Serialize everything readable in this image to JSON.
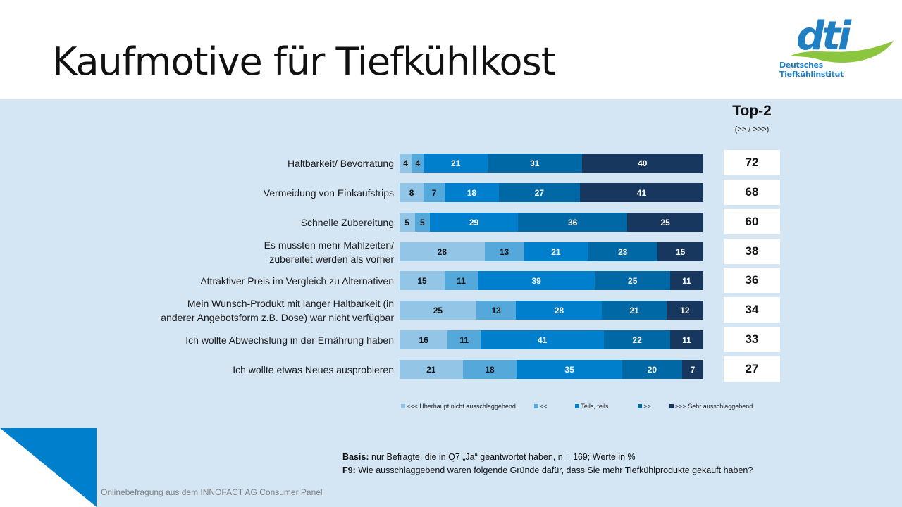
{
  "slide": {
    "title": "Kaufmotive für Tiefkühlkost",
    "logo": {
      "mark": "dti",
      "line1": "Deutsches",
      "line2": "Tiefkühlinstitut"
    },
    "source": "Onlinebefragung aus dem INNOFACT AG Consumer Panel",
    "basis_label": "Basis:",
    "basis_text": " nur Befragte, die in Q7 „Ja“ geantwortet haben, n = 169; Werte in %",
    "question_label": "F9:",
    "question_text": " Wie ausschlaggebend waren folgende Gründe dafür, dass Sie mehr Tiefkühlprodukte gekauft haben?",
    "top2_title": "Top-2",
    "top2_subtitle": "(>> / >>>)",
    "colors": {
      "panel": "#d4e5f4",
      "accent": "#0080cc",
      "logo_blue": "#1f7fc2",
      "logo_green": "#8cc63f"
    }
  },
  "chart_data": {
    "type": "bar",
    "orientation": "horizontal",
    "stacked": true,
    "title": "Kaufmotive für Tiefkühlkost",
    "xlabel": "",
    "ylabel": "",
    "unit": "%",
    "xlim": [
      0,
      100
    ],
    "legend_position": "bottom",
    "categories": [
      "Haltbarkeit/ Bevorratung",
      "Vermeidung von Einkaufstrips",
      "Schnelle Zubereitung",
      "Es mussten mehr Mahlzeiten/\nzubereitet werden als vorher",
      "Attraktiver Preis im Vergleich zu Alternativen",
      "Mein Wunsch-Produkt mit langer Haltbarkeit (in\nanderer Angebotsform z.B. Dose) war nicht verfügbar",
      "Ich wollte Abwechslung in der Ernährung haben",
      "Ich wollte etwas Neues ausprobieren"
    ],
    "series": [
      {
        "name": "<<< Überhaupt nicht ausschlaggebend",
        "color": "#92c5e6",
        "label_color": "#111111",
        "values": [
          4,
          8,
          5,
          28,
          15,
          25,
          16,
          21
        ]
      },
      {
        "name": "<<",
        "color": "#55a8da",
        "label_color": "#111111",
        "values": [
          4,
          7,
          5,
          13,
          11,
          13,
          11,
          18
        ]
      },
      {
        "name": "Teils, teils",
        "color": "#0080cc",
        "label_color": "#ffffff",
        "values": [
          21,
          18,
          29,
          21,
          39,
          28,
          41,
          35
        ]
      },
      {
        "name": ">>",
        "color": "#0068a5",
        "label_color": "#ffffff",
        "values": [
          31,
          27,
          36,
          23,
          25,
          21,
          22,
          20
        ]
      },
      {
        "name": ">>> Sehr ausschlaggebend",
        "color": "#17375e",
        "label_color": "#ffffff",
        "values": [
          40,
          41,
          25,
          15,
          11,
          12,
          11,
          7
        ]
      }
    ],
    "top2": {
      "label": "Top-2",
      "sublabel": "(>> / >>>)",
      "values": [
        72,
        68,
        60,
        38,
        36,
        34,
        33,
        27
      ]
    }
  }
}
